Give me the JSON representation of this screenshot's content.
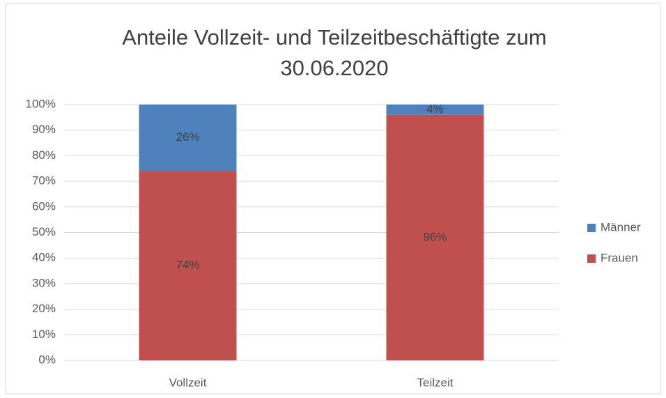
{
  "chart_data": {
    "type": "stacked_bar",
    "title": "Anteile Vollzeit- und Teilzeitbeschäftigte zum 30.06.2020",
    "categories": [
      "Vollzeit",
      "Teilzeit"
    ],
    "series": [
      {
        "name": "Frauen",
        "color": "#c0504d",
        "values": [
          74,
          96
        ],
        "value_labels": [
          "74%",
          "96%"
        ]
      },
      {
        "name": "Männer",
        "color": "#4f81bd",
        "values": [
          26,
          4
        ],
        "value_labels": [
          "26%",
          "4%"
        ]
      }
    ],
    "ylim": [
      0,
      100
    ],
    "yticks": [
      {
        "value": 0,
        "label": "0%"
      },
      {
        "value": 10,
        "label": "10%"
      },
      {
        "value": 20,
        "label": "20%"
      },
      {
        "value": 30,
        "label": "30%"
      },
      {
        "value": 40,
        "label": "40%"
      },
      {
        "value": 50,
        "label": "50%"
      },
      {
        "value": 60,
        "label": "60%"
      },
      {
        "value": 70,
        "label": "70%"
      },
      {
        "value": 80,
        "label": "80%"
      },
      {
        "value": 90,
        "label": "90%"
      },
      {
        "value": 100,
        "label": "100%"
      }
    ],
    "grid": true,
    "legend": "right"
  }
}
